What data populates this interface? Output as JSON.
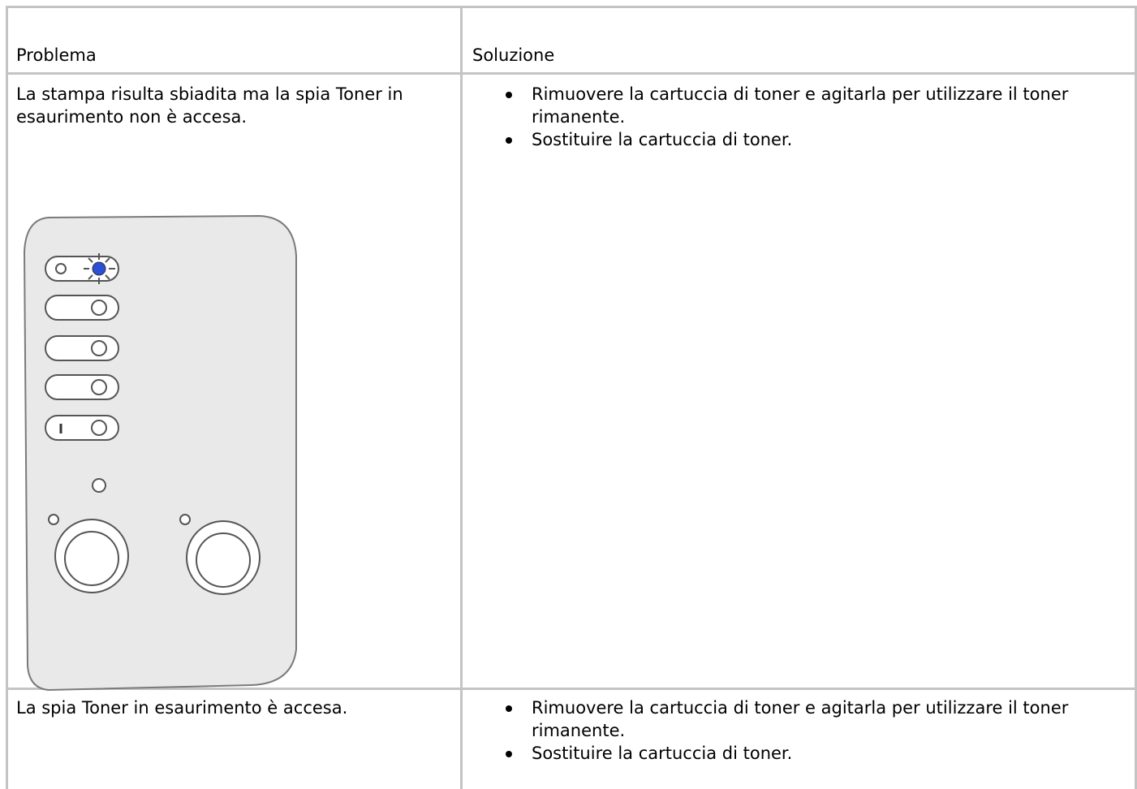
{
  "table": {
    "header": [
      "Problema",
      "Soluzione"
    ],
    "rows": [
      {
        "problem": "La stampa risulta sbiadita ma la spia Toner in esaurimento non è accesa.",
        "solutions": [
          "Rimuovere la cartuccia di toner e agitarla per utilizzare il toner rimanente.",
          "Sostituire la cartuccia di toner."
        ]
      },
      {
        "problem": "La spia Toner in esaurimento è accesa.",
        "solutions": [
          "Rimuovere la cartuccia di toner e agitarla per utilizzare il toner rimanente.",
          "Sostituire la cartuccia di toner."
        ]
      }
    ]
  }
}
